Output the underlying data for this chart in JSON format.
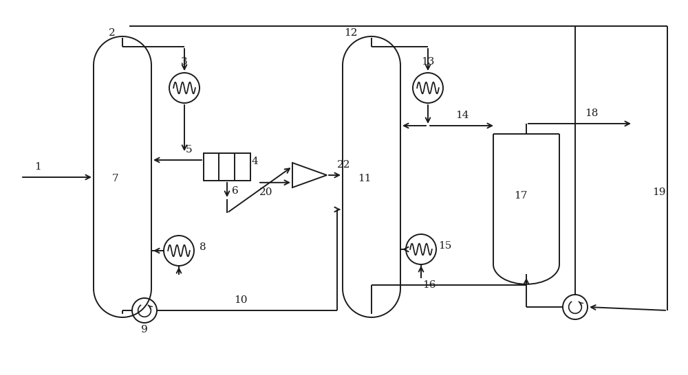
{
  "bg_color": "#ffffff",
  "line_color": "#1a1a1a",
  "fig_width": 10.0,
  "fig_height": 5.46,
  "dpi": 100
}
